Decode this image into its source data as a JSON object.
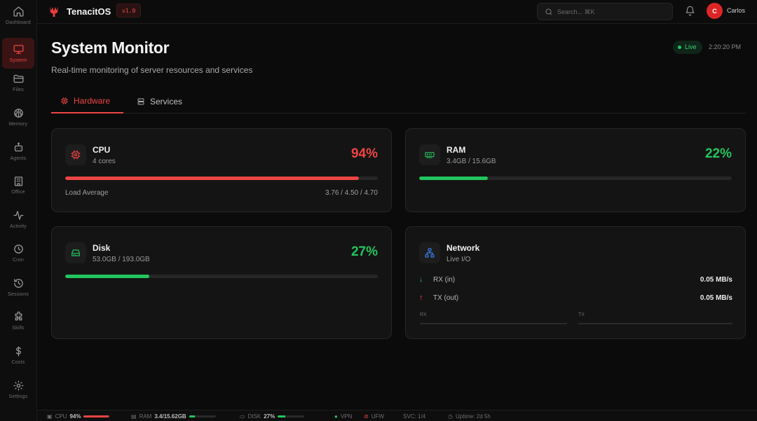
{
  "app": {
    "name": "TenacitOS",
    "version": "v1.0"
  },
  "sidebar": {
    "items": [
      {
        "label": "Dashboard",
        "icon": "home-icon"
      },
      {
        "label": "System",
        "icon": "monitor-icon",
        "active": true
      },
      {
        "label": "Files",
        "icon": "folder-icon"
      },
      {
        "label": "Memory",
        "icon": "brain-icon"
      },
      {
        "label": "Agents",
        "icon": "bot-icon"
      },
      {
        "label": "Office",
        "icon": "building-icon"
      },
      {
        "label": "Activity",
        "icon": "activity-icon"
      },
      {
        "label": "Cron",
        "icon": "clock-icon"
      },
      {
        "label": "Sessions",
        "icon": "history-icon"
      },
      {
        "label": "Skills",
        "icon": "puzzle-icon"
      },
      {
        "label": "Costs",
        "icon": "dollar-icon"
      },
      {
        "label": "Settings",
        "icon": "gear-icon"
      }
    ]
  },
  "header": {
    "search_placeholder": "Search... ⌘K",
    "user_initial": "C",
    "user_name": "Carlos"
  },
  "page": {
    "title": "System Monitor",
    "subtitle": "Real-time monitoring of server resources and services",
    "live_label": "Live",
    "time": "2:20:20 PM"
  },
  "tabs": [
    {
      "label": "Hardware",
      "active": true
    },
    {
      "label": "Services",
      "active": false
    }
  ],
  "cards": {
    "cpu": {
      "title": "CPU",
      "sub": "4 cores",
      "pct": "94%",
      "fill": 0.94,
      "load_label": "Load Average",
      "load_value": "3.76 / 4.50 / 4.70"
    },
    "ram": {
      "title": "RAM",
      "sub": "3.4GB / 15.6GB",
      "pct": "22%",
      "fill": 0.22
    },
    "disk": {
      "title": "Disk",
      "sub": "53.0GB / 193.0GB",
      "pct": "27%",
      "fill": 0.27
    },
    "network": {
      "title": "Network",
      "sub": "Live I/O",
      "rx_label": "RX (in)",
      "rx_value": "0.05 MB/s",
      "tx_label": "TX (out)",
      "tx_value": "0.05 MB/s",
      "rx_chart_label": "RX",
      "tx_chart_label": "TX"
    }
  },
  "colors": {
    "accent": "#ef4444",
    "good": "#22c55e",
    "network_icon": "#3b82f6"
  },
  "statusbar": {
    "cpu_label": "CPU",
    "cpu_value": "94%",
    "cpu_fill": 0.94,
    "ram_label": "RAM",
    "ram_value": "3.4/15.62GB",
    "ram_fill": 0.22,
    "disk_label": "DISK",
    "disk_value": "27%",
    "disk_fill": 0.27,
    "vpn_label": "VPN",
    "ufw_label": "UFW",
    "svc_label": "SVC: 1/4",
    "uptime_label": "Uptime: 2d 5h"
  }
}
